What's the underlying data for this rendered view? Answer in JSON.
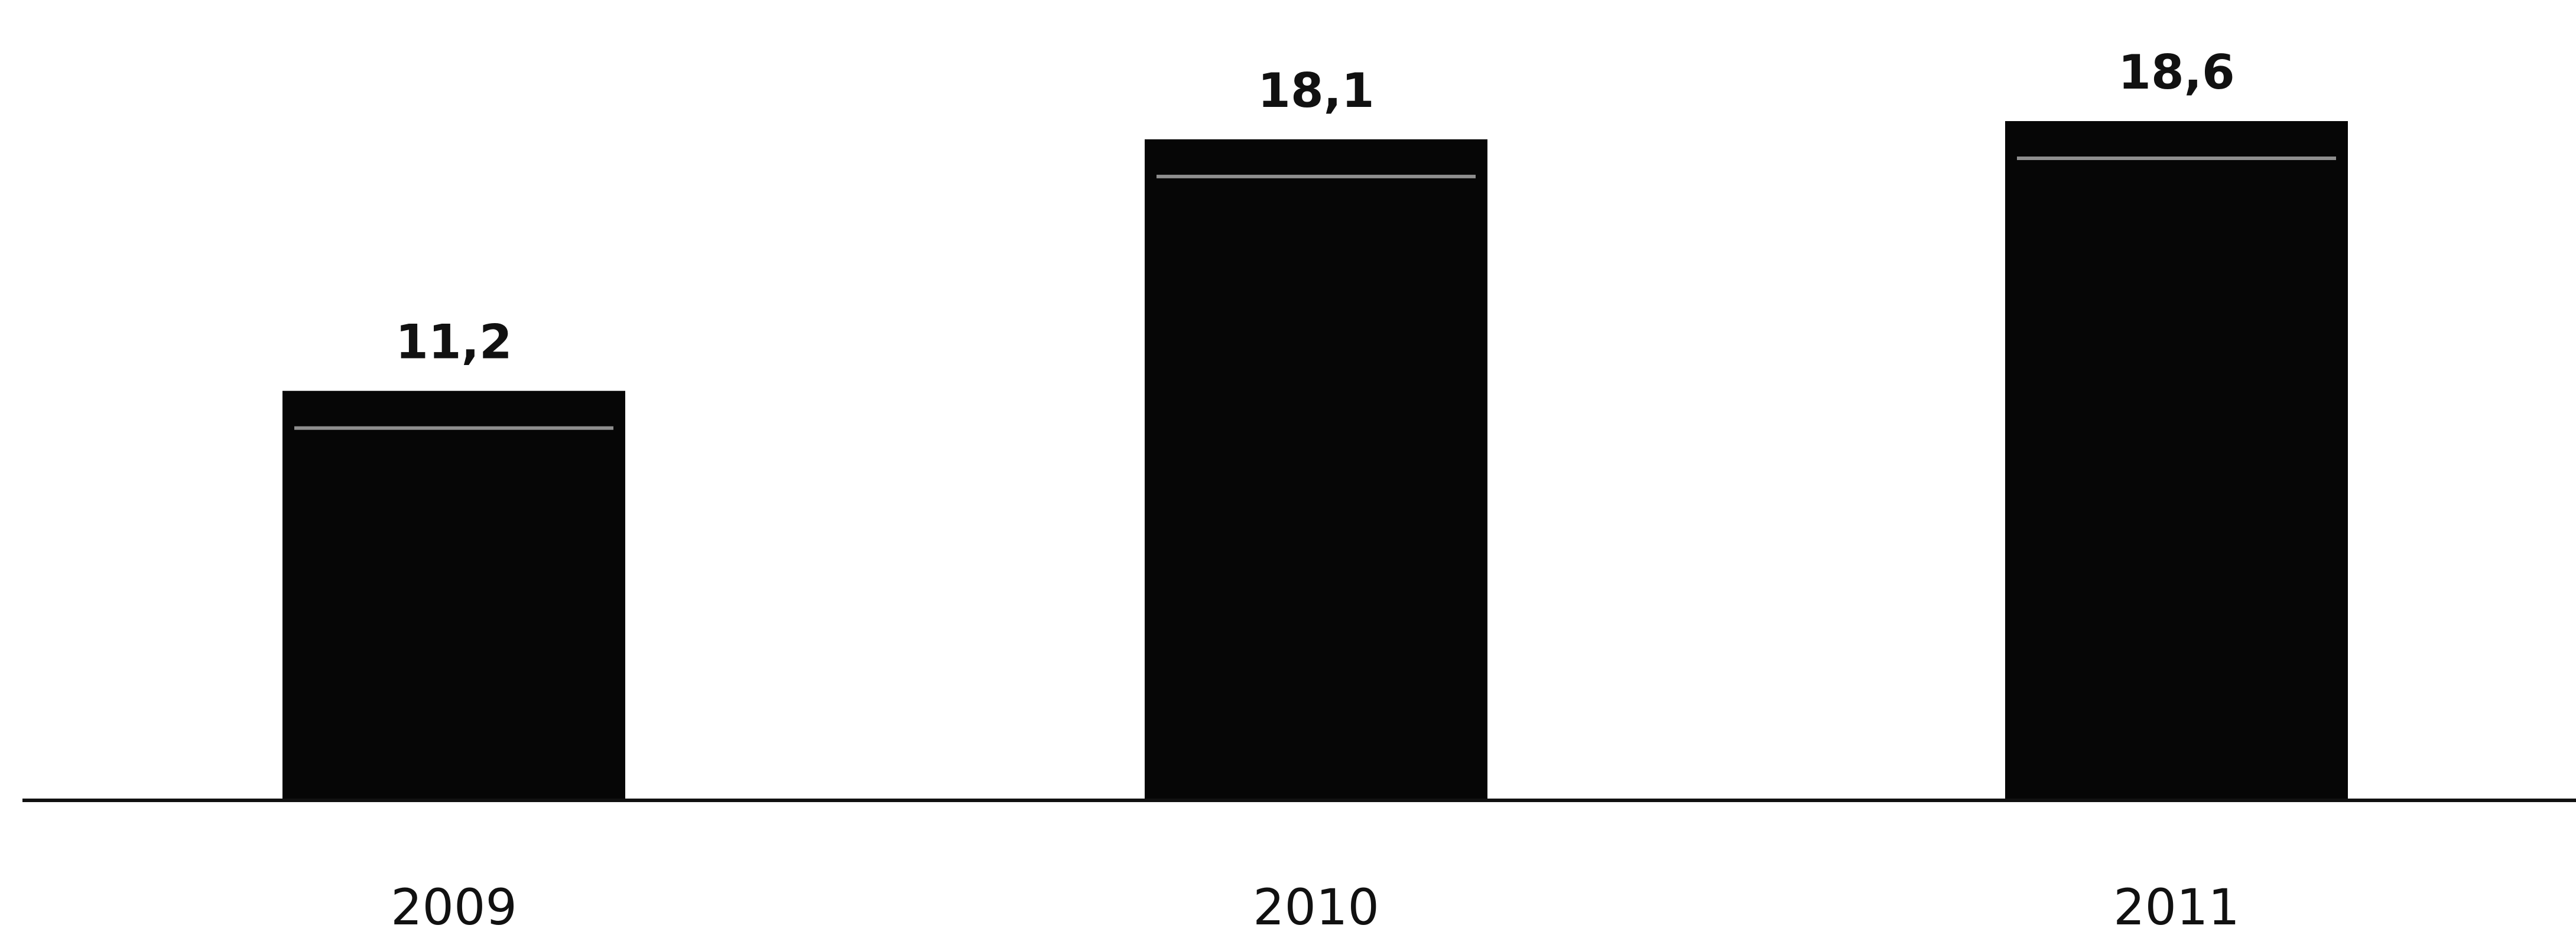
{
  "chart_data": {
    "type": "bar",
    "categories": [
      "2009",
      "2010",
      "2011"
    ],
    "values": [
      11.2,
      18.1,
      18.6
    ],
    "value_labels": [
      "11,2",
      "18,1",
      "18,6"
    ],
    "title": "",
    "xlabel": "",
    "ylabel": "",
    "ylim": [
      0,
      18.6
    ],
    "grid": false,
    "legend": "none",
    "bar_color": "#060606",
    "axis_color": "#111111"
  }
}
